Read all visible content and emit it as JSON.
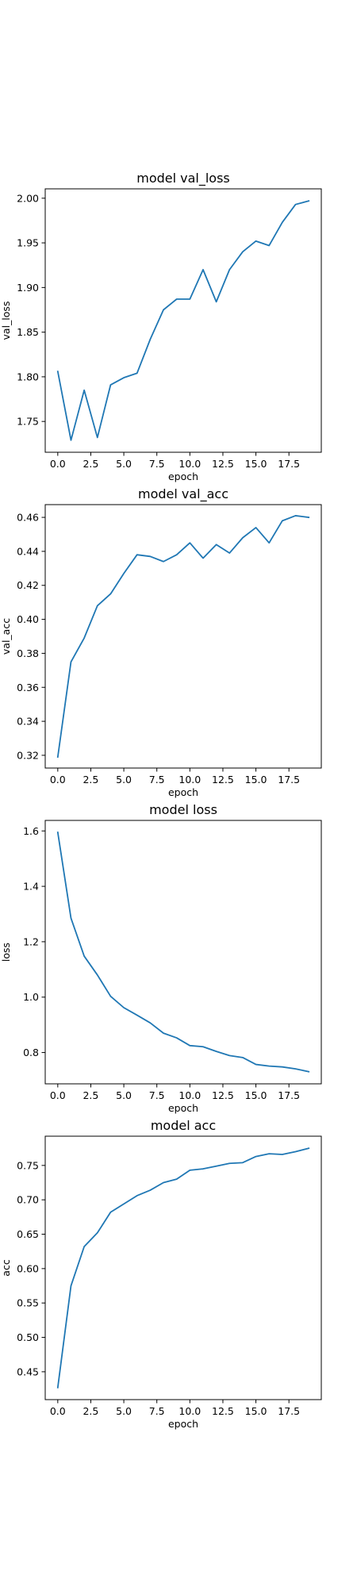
{
  "chart_data": [
    {
      "type": "line",
      "title": "model val_loss",
      "xlabel": "epoch",
      "ylabel": "val_loss",
      "xlim": [
        -0.95,
        19.95
      ],
      "ylim": [
        1.7155,
        2.0105
      ],
      "xticks": [
        0,
        2.5,
        5,
        7.5,
        10,
        12.5,
        15,
        17.5
      ],
      "xtick_labels": [
        "0.0",
        "2.5",
        "5.0",
        "7.5",
        "10.0",
        "12.5",
        "15.0",
        "17.5"
      ],
      "yticks": [
        1.75,
        1.8,
        1.85,
        1.9,
        1.95,
        2.0
      ],
      "ytick_labels": [
        "1.75",
        "1.80",
        "1.85",
        "1.90",
        "1.95",
        "2.00"
      ],
      "grid": false,
      "color": "#1f77b4",
      "x": [
        0,
        1,
        2,
        3,
        4,
        5,
        6,
        7,
        8,
        9,
        10,
        11,
        12,
        13,
        14,
        15,
        16,
        17,
        18,
        19
      ],
      "values": [
        1.806,
        1.729,
        1.785,
        1.732,
        1.791,
        1.799,
        1.804,
        1.842,
        1.875,
        1.887,
        1.887,
        1.92,
        1.884,
        1.92,
        1.94,
        1.952,
        1.947,
        1.973,
        1.993,
        1.997
      ]
    },
    {
      "type": "line",
      "title": "model val_acc",
      "xlabel": "epoch",
      "ylabel": "val_acc",
      "xlim": [
        -0.95,
        19.95
      ],
      "ylim": [
        0.3125,
        0.4675
      ],
      "xticks": [
        0,
        2.5,
        5,
        7.5,
        10,
        12.5,
        15,
        17.5
      ],
      "xtick_labels": [
        "0.0",
        "2.5",
        "5.0",
        "7.5",
        "10.0",
        "12.5",
        "15.0",
        "17.5"
      ],
      "yticks": [
        0.32,
        0.34,
        0.36,
        0.38,
        0.4,
        0.42,
        0.44,
        0.46
      ],
      "ytick_labels": [
        "0.32",
        "0.34",
        "0.36",
        "0.38",
        "0.40",
        "0.42",
        "0.44",
        "0.46"
      ],
      "grid": false,
      "color": "#1f77b4",
      "x": [
        0,
        1,
        2,
        3,
        4,
        5,
        6,
        7,
        8,
        9,
        10,
        11,
        12,
        13,
        14,
        15,
        16,
        17,
        18,
        19
      ],
      "values": [
        0.319,
        0.375,
        0.389,
        0.408,
        0.415,
        0.427,
        0.438,
        0.437,
        0.434,
        0.438,
        0.445,
        0.436,
        0.444,
        0.439,
        0.448,
        0.454,
        0.445,
        0.458,
        0.461,
        0.46
      ]
    },
    {
      "type": "line",
      "title": "model loss",
      "xlabel": "epoch",
      "ylabel": "loss",
      "xlim": [
        -0.95,
        19.95
      ],
      "ylim": [
        0.687,
        1.638
      ],
      "xticks": [
        0,
        2.5,
        5,
        7.5,
        10,
        12.5,
        15,
        17.5
      ],
      "xtick_labels": [
        "0.0",
        "2.5",
        "5.0",
        "7.5",
        "10.0",
        "12.5",
        "15.0",
        "17.5"
      ],
      "yticks": [
        0.8,
        1.0,
        1.2,
        1.4,
        1.6
      ],
      "ytick_labels": [
        "0.8",
        "1.0",
        "1.2",
        "1.4",
        "1.6"
      ],
      "grid": false,
      "color": "#1f77b4",
      "x": [
        0,
        1,
        2,
        3,
        4,
        5,
        6,
        7,
        8,
        9,
        10,
        11,
        12,
        13,
        14,
        15,
        16,
        17,
        18,
        19
      ],
      "values": [
        1.595,
        1.285,
        1.148,
        1.08,
        1.003,
        0.962,
        0.935,
        0.907,
        0.87,
        0.853,
        0.825,
        0.821,
        0.804,
        0.789,
        0.782,
        0.757,
        0.751,
        0.748,
        0.741,
        0.731
      ]
    },
    {
      "type": "line",
      "title": "model acc",
      "xlabel": "epoch",
      "ylabel": "acc",
      "xlim": [
        -0.95,
        19.95
      ],
      "ylim": [
        0.4095,
        0.7925
      ],
      "xticks": [
        0,
        2.5,
        5,
        7.5,
        10,
        12.5,
        15,
        17.5
      ],
      "xtick_labels": [
        "0.0",
        "2.5",
        "5.0",
        "7.5",
        "10.0",
        "12.5",
        "15.0",
        "17.5"
      ],
      "yticks": [
        0.45,
        0.5,
        0.55,
        0.6,
        0.65,
        0.7,
        0.75
      ],
      "ytick_labels": [
        "0.45",
        "0.50",
        "0.55",
        "0.60",
        "0.65",
        "0.70",
        "0.75"
      ],
      "grid": false,
      "color": "#1f77b4",
      "x": [
        0,
        1,
        2,
        3,
        4,
        5,
        6,
        7,
        8,
        9,
        10,
        11,
        12,
        13,
        14,
        15,
        16,
        17,
        18,
        19
      ],
      "values": [
        0.427,
        0.575,
        0.632,
        0.652,
        0.682,
        0.694,
        0.706,
        0.714,
        0.725,
        0.73,
        0.743,
        0.745,
        0.749,
        0.753,
        0.754,
        0.763,
        0.767,
        0.766,
        0.77,
        0.775
      ]
    }
  ]
}
